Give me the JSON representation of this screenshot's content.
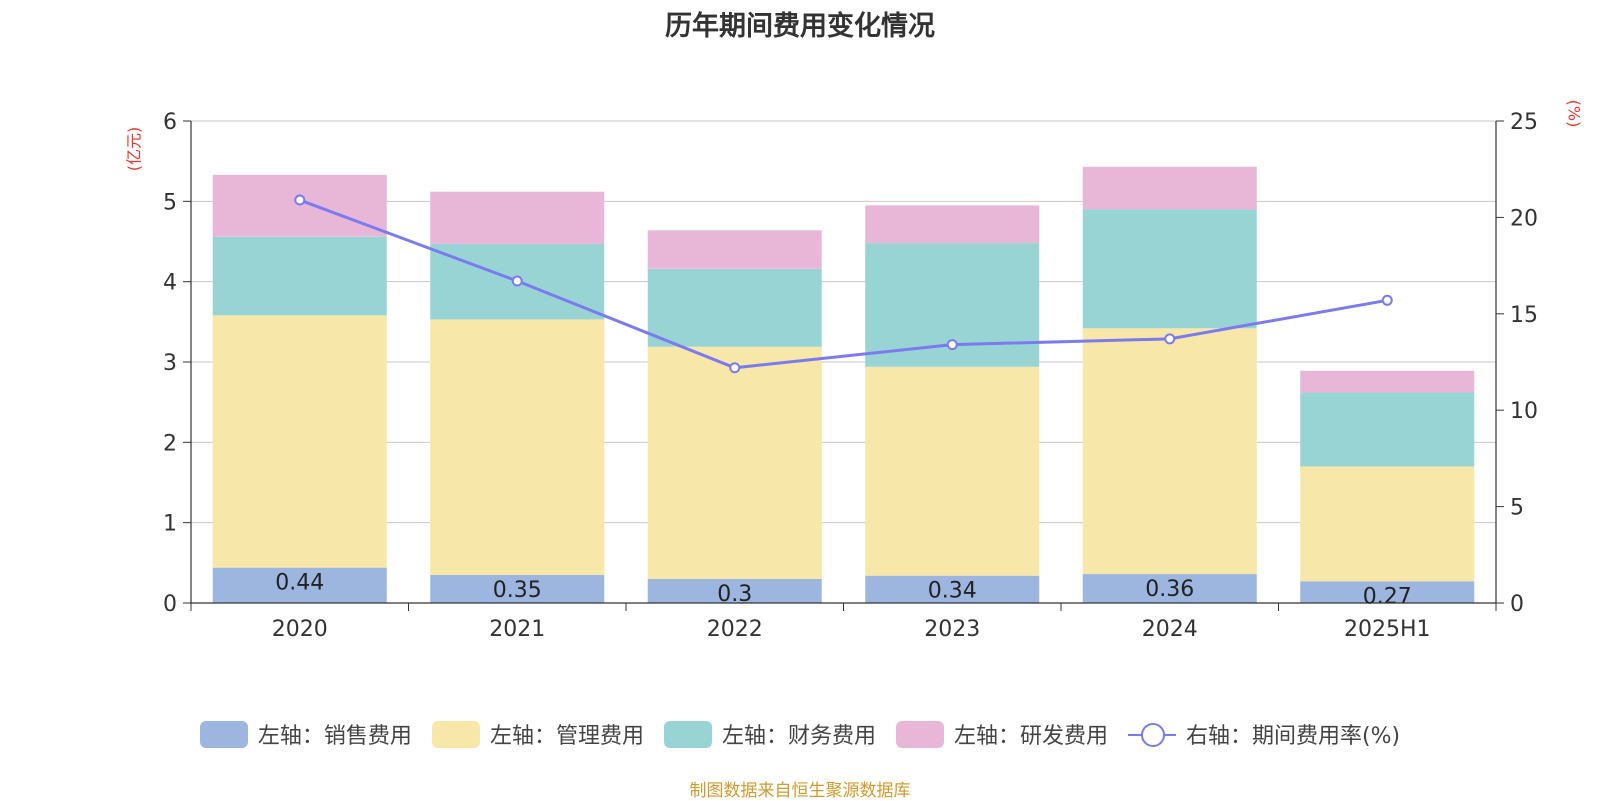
{
  "title": "历年期间费用变化情况",
  "footer": "制图数据来自恒生聚源数据库",
  "colors": {
    "sales": "#9cb6e0",
    "admin": "#f7e7a8",
    "finance": "#98d4d4",
    "rnd": "#e8b7d8",
    "rate": "#7b7bef",
    "unit_label": "#e8372f",
    "footer": "#d09a2f"
  },
  "chart_data": {
    "type": "bar",
    "stacked": true,
    "categories": [
      "2020",
      "2021",
      "2022",
      "2023",
      "2024",
      "2025H1"
    ],
    "y_left": {
      "unit": "(亿元)",
      "ylim": [
        0,
        6
      ],
      "ticks": [
        "0",
        "1",
        "2",
        "3",
        "4",
        "5",
        "6"
      ]
    },
    "y_right": {
      "unit": "(%)",
      "ylim": [
        0,
        25
      ],
      "ticks": [
        "0",
        "5",
        "10",
        "15",
        "20",
        "25"
      ]
    },
    "grid": true,
    "legend_position": "bottom",
    "series": [
      {
        "name": "左轴：销售费用",
        "key": "sales",
        "axis": "left",
        "values": [
          0.44,
          0.35,
          0.3,
          0.34,
          0.36,
          0.27
        ],
        "labels": [
          "0.44",
          "0.35",
          "0.3",
          "0.34",
          "0.36",
          "0.27"
        ]
      },
      {
        "name": "左轴：管理费用",
        "key": "admin",
        "axis": "left",
        "values": [
          3.14,
          3.18,
          2.89,
          2.6,
          3.06,
          1.43
        ]
      },
      {
        "name": "左轴：财务费用",
        "key": "finance",
        "axis": "left",
        "values": [
          0.98,
          0.94,
          0.97,
          1.54,
          1.48,
          0.92
        ]
      },
      {
        "name": "左轴：研发费用",
        "key": "rnd",
        "axis": "left",
        "values": [
          0.77,
          0.65,
          0.48,
          0.47,
          0.53,
          0.27
        ]
      },
      {
        "name": "右轴：期间费用率(%)",
        "key": "rate",
        "axis": "right",
        "type": "line",
        "values": [
          20.9,
          16.7,
          12.2,
          13.4,
          13.7,
          15.7
        ]
      }
    ]
  }
}
